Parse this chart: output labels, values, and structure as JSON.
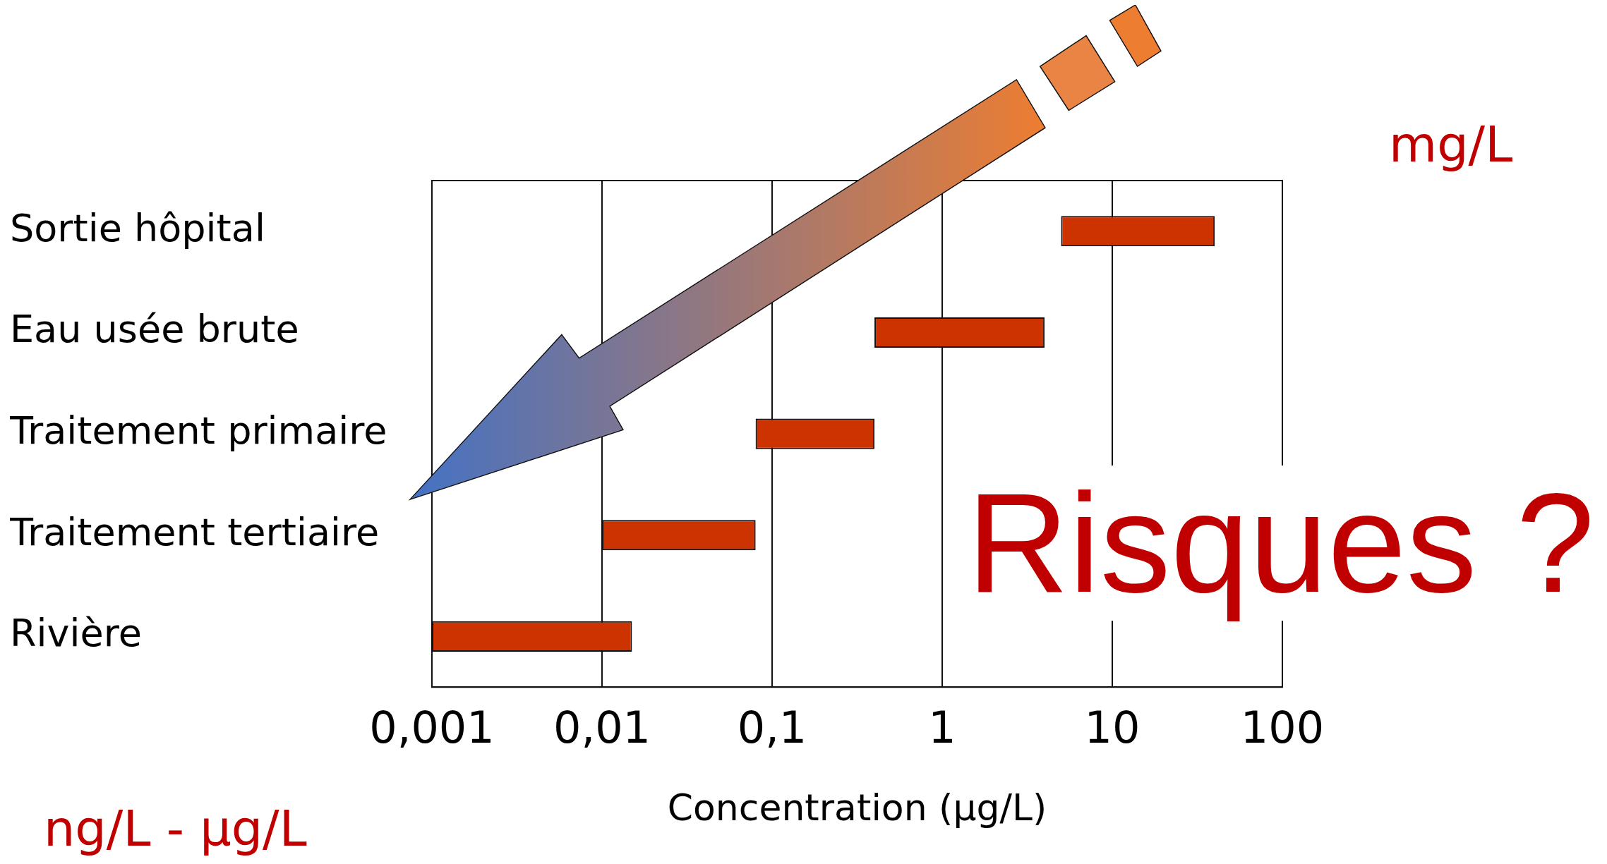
{
  "chart_data": {
    "type": "bar",
    "orientation": "horizontal",
    "categories": [
      "Sortie hôpital",
      "Eau usée brute",
      "Traitement primaire",
      "Traitement tertiaire",
      "Rivière"
    ],
    "base": [
      5,
      0.4,
      0.08,
      0.01,
      0.001
    ],
    "values": [
      35,
      3.6,
      0.32,
      0.07,
      0.014
    ],
    "color": "#cc3300",
    "log": "x",
    "xlim": [
      0.001,
      100
    ],
    "xticks": [
      {
        "value": 0.001,
        "label": "0,001"
      },
      {
        "value": 0.01,
        "label": "0,01"
      },
      {
        "value": 0.1,
        "label": "0,1"
      },
      1,
      10,
      100
    ],
    "xlabel": "Concentration (µg/L)",
    "grid": "x",
    "legend": false,
    "annotations": [
      "mg/L",
      "Risques ?",
      "ng/L - µg/L"
    ]
  }
}
